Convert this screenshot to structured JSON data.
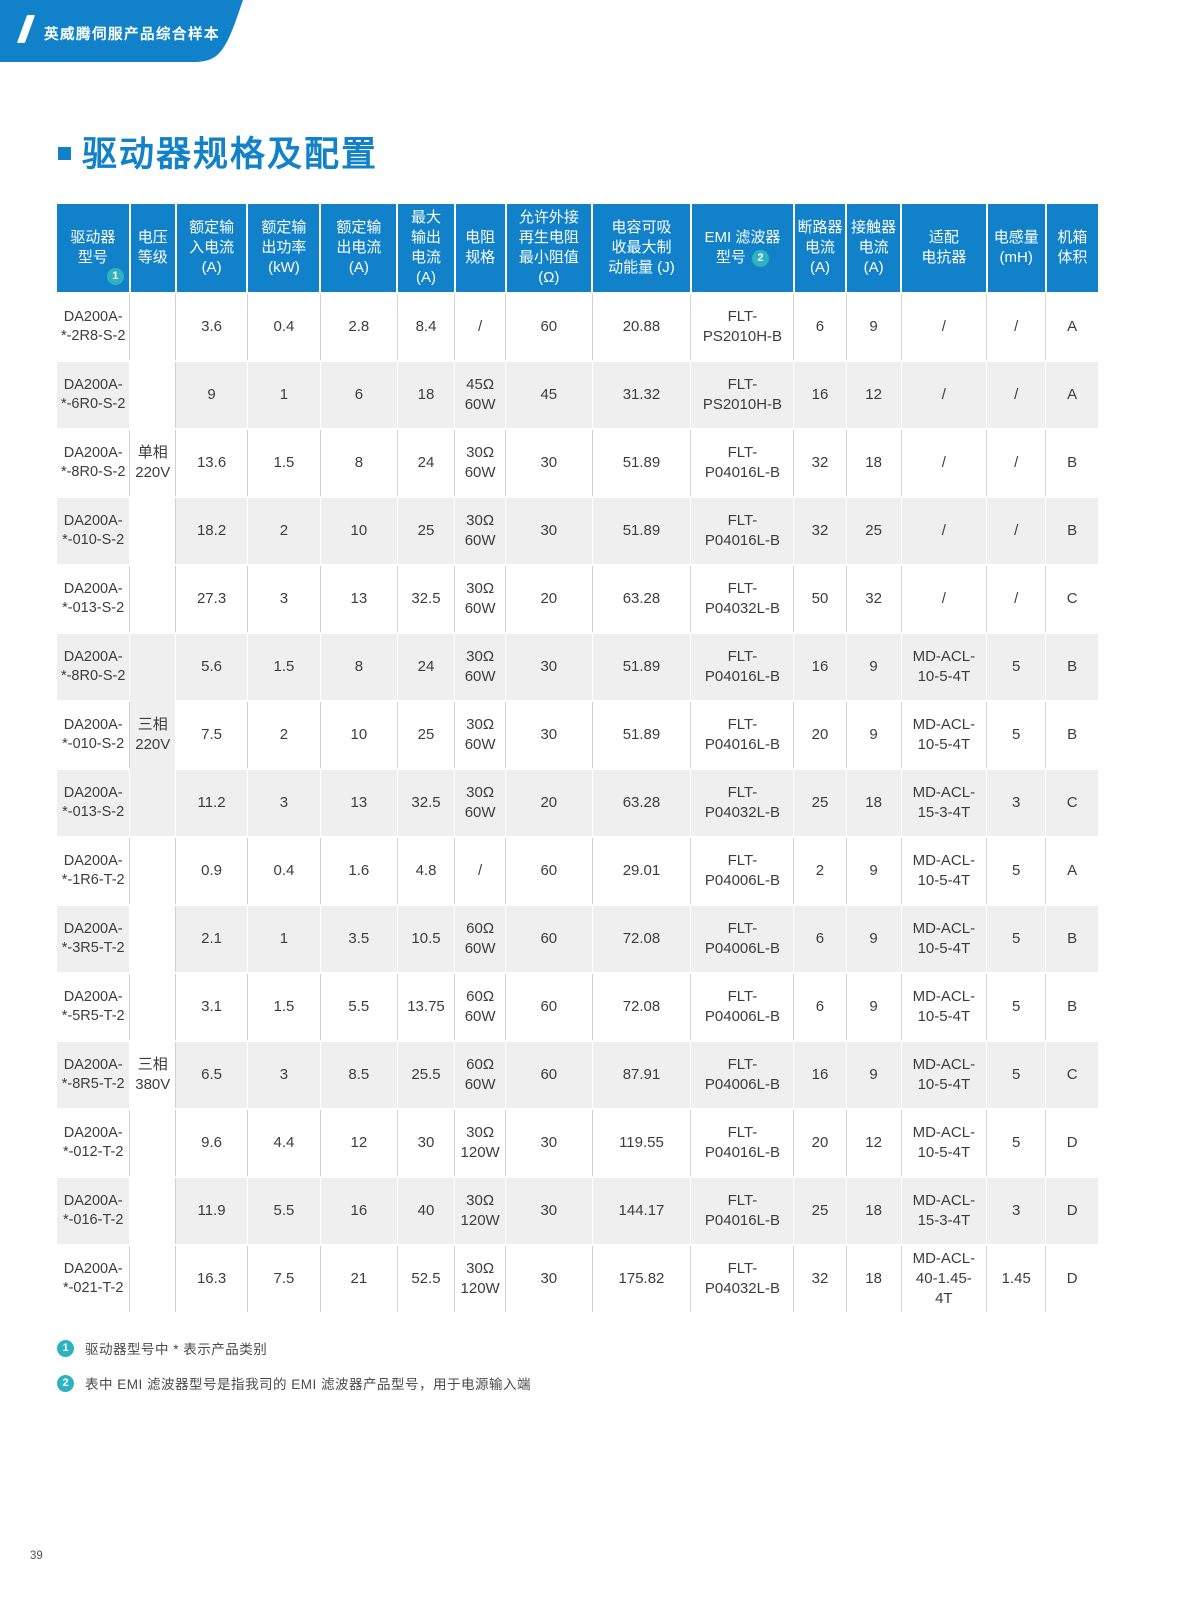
{
  "page": {
    "banner_title": "英威腾伺服产品综合样本",
    "section_title": "驱动器规格及配置",
    "page_number": "39"
  },
  "colors": {
    "primary_blue": "#1182c9",
    "badge_teal": "#2fb2c0",
    "row_alt_gray": "#efefef"
  },
  "table": {
    "col_widths": [
      "7%",
      "4.4%",
      "6.9%",
      "7%",
      "7.4%",
      "5.5%",
      "4.9%",
      "8.3%",
      "9.5%",
      "9.9%",
      "5%",
      "5.3%",
      "8.2%",
      "5.7%",
      "5%"
    ],
    "headers": [
      {
        "text": "驱动器\n型号",
        "badge": "1",
        "badge_pos": "corner"
      },
      {
        "text": "电压\n等级"
      },
      {
        "text": "额定输\n入电流\n(A)"
      },
      {
        "text": "额定输\n出功率\n(kW)"
      },
      {
        "text": "额定输\n出电流\n(A)"
      },
      {
        "text": "最大\n输出\n电流\n(A)"
      },
      {
        "text": "电阻\n规格"
      },
      {
        "text": "允许外接\n再生电阻\n最小阻值\n(Ω)"
      },
      {
        "text": "电容可吸\n收最大制\n动能量 (J)"
      },
      {
        "text": "EMI 滤波器\n型号",
        "badge": "2",
        "badge_pos": "inline"
      },
      {
        "text": "断路器\n电流\n(A)"
      },
      {
        "text": "接触器\n电流\n(A)"
      },
      {
        "text": "适配\n电抗器"
      },
      {
        "text": "电感量\n(mH)"
      },
      {
        "text": "机箱\n体积"
      }
    ],
    "rows": [
      [
        {
          "t": "DA200A-\n*-2R8-S-2"
        },
        {
          "t": "单相\n220V",
          "rs": 5
        },
        {
          "t": "3.6"
        },
        {
          "t": "0.4"
        },
        {
          "t": "2.8"
        },
        {
          "t": "8.4"
        },
        {
          "t": "/"
        },
        {
          "t": "60"
        },
        {
          "t": "20.88"
        },
        {
          "t": "FLT-\nPS2010H-B"
        },
        {
          "t": "6"
        },
        {
          "t": "9"
        },
        {
          "t": "/"
        },
        {
          "t": "/"
        },
        {
          "t": "A"
        }
      ],
      [
        {
          "t": "DA200A-\n*-6R0-S-2"
        },
        {
          "t": "9"
        },
        {
          "t": "1"
        },
        {
          "t": "6"
        },
        {
          "t": "18"
        },
        {
          "t": "45Ω\n60W"
        },
        {
          "t": "45"
        },
        {
          "t": "31.32"
        },
        {
          "t": "FLT-\nPS2010H-B"
        },
        {
          "t": "16"
        },
        {
          "t": "12"
        },
        {
          "t": "/"
        },
        {
          "t": "/"
        },
        {
          "t": "A"
        }
      ],
      [
        {
          "t": "DA200A-\n*-8R0-S-2"
        },
        {
          "t": "13.6"
        },
        {
          "t": "1.5"
        },
        {
          "t": "8"
        },
        {
          "t": "24"
        },
        {
          "t": "30Ω\n60W"
        },
        {
          "t": "30"
        },
        {
          "t": "51.89"
        },
        {
          "t": "FLT-\nP04016L-B"
        },
        {
          "t": "32"
        },
        {
          "t": "18"
        },
        {
          "t": "/"
        },
        {
          "t": "/"
        },
        {
          "t": "B"
        }
      ],
      [
        {
          "t": "DA200A-\n*-010-S-2"
        },
        {
          "t": "18.2"
        },
        {
          "t": "2"
        },
        {
          "t": "10"
        },
        {
          "t": "25"
        },
        {
          "t": "30Ω\n60W"
        },
        {
          "t": "30"
        },
        {
          "t": "51.89"
        },
        {
          "t": "FLT-\nP04016L-B"
        },
        {
          "t": "32"
        },
        {
          "t": "25"
        },
        {
          "t": "/"
        },
        {
          "t": "/"
        },
        {
          "t": "B"
        }
      ],
      [
        {
          "t": "DA200A-\n*-013-S-2"
        },
        {
          "t": "27.3"
        },
        {
          "t": "3"
        },
        {
          "t": "13"
        },
        {
          "t": "32.5"
        },
        {
          "t": "30Ω\n60W"
        },
        {
          "t": "20"
        },
        {
          "t": "63.28"
        },
        {
          "t": "FLT-\nP04032L-B"
        },
        {
          "t": "50"
        },
        {
          "t": "32"
        },
        {
          "t": "/"
        },
        {
          "t": "/"
        },
        {
          "t": "C"
        }
      ],
      [
        {
          "t": "DA200A-\n*-8R0-S-2"
        },
        {
          "t": "三相\n220V",
          "rs": 3
        },
        {
          "t": "5.6"
        },
        {
          "t": "1.5"
        },
        {
          "t": "8"
        },
        {
          "t": "24"
        },
        {
          "t": "30Ω\n60W"
        },
        {
          "t": "30"
        },
        {
          "t": "51.89"
        },
        {
          "t": "FLT-\nP04016L-B"
        },
        {
          "t": "16"
        },
        {
          "t": "9"
        },
        {
          "t": "MD-ACL-\n10-5-4T"
        },
        {
          "t": "5"
        },
        {
          "t": "B"
        }
      ],
      [
        {
          "t": "DA200A-\n*-010-S-2"
        },
        {
          "t": "7.5"
        },
        {
          "t": "2"
        },
        {
          "t": "10"
        },
        {
          "t": "25"
        },
        {
          "t": "30Ω\n60W"
        },
        {
          "t": "30"
        },
        {
          "t": "51.89"
        },
        {
          "t": "FLT-\nP04016L-B"
        },
        {
          "t": "20"
        },
        {
          "t": "9"
        },
        {
          "t": "MD-ACL-\n10-5-4T"
        },
        {
          "t": "5"
        },
        {
          "t": "B"
        }
      ],
      [
        {
          "t": "DA200A-\n*-013-S-2"
        },
        {
          "t": "11.2"
        },
        {
          "t": "3"
        },
        {
          "t": "13"
        },
        {
          "t": "32.5"
        },
        {
          "t": "30Ω\n60W"
        },
        {
          "t": "20"
        },
        {
          "t": "63.28"
        },
        {
          "t": "FLT-\nP04032L-B"
        },
        {
          "t": "25"
        },
        {
          "t": "18"
        },
        {
          "t": "MD-ACL-\n15-3-4T"
        },
        {
          "t": "3"
        },
        {
          "t": "C"
        }
      ],
      [
        {
          "t": "DA200A-\n*-1R6-T-2"
        },
        {
          "t": "三相\n380V",
          "rs": 7
        },
        {
          "t": "0.9"
        },
        {
          "t": "0.4"
        },
        {
          "t": "1.6"
        },
        {
          "t": "4.8"
        },
        {
          "t": "/"
        },
        {
          "t": "60"
        },
        {
          "t": "29.01"
        },
        {
          "t": "FLT-\nP04006L-B"
        },
        {
          "t": "2"
        },
        {
          "t": "9"
        },
        {
          "t": "MD-ACL-\n10-5-4T"
        },
        {
          "t": "5"
        },
        {
          "t": "A"
        }
      ],
      [
        {
          "t": "DA200A-\n*-3R5-T-2"
        },
        {
          "t": "2.1"
        },
        {
          "t": "1"
        },
        {
          "t": "3.5"
        },
        {
          "t": "10.5"
        },
        {
          "t": "60Ω\n60W"
        },
        {
          "t": "60"
        },
        {
          "t": "72.08"
        },
        {
          "t": "FLT-\nP04006L-B"
        },
        {
          "t": "6"
        },
        {
          "t": "9"
        },
        {
          "t": "MD-ACL-\n10-5-4T"
        },
        {
          "t": "5"
        },
        {
          "t": "B"
        }
      ],
      [
        {
          "t": "DA200A-\n*-5R5-T-2"
        },
        {
          "t": "3.1"
        },
        {
          "t": "1.5"
        },
        {
          "t": "5.5"
        },
        {
          "t": "13.75"
        },
        {
          "t": "60Ω\n60W"
        },
        {
          "t": "60"
        },
        {
          "t": "72.08"
        },
        {
          "t": "FLT-\nP04006L-B"
        },
        {
          "t": "6"
        },
        {
          "t": "9"
        },
        {
          "t": "MD-ACL-\n10-5-4T"
        },
        {
          "t": "5"
        },
        {
          "t": "B"
        }
      ],
      [
        {
          "t": "DA200A-\n*-8R5-T-2"
        },
        {
          "t": "6.5"
        },
        {
          "t": "3"
        },
        {
          "t": "8.5"
        },
        {
          "t": "25.5"
        },
        {
          "t": "60Ω\n60W"
        },
        {
          "t": "60"
        },
        {
          "t": "87.91"
        },
        {
          "t": "FLT-\nP04006L-B"
        },
        {
          "t": "16"
        },
        {
          "t": "9"
        },
        {
          "t": "MD-ACL-\n10-5-4T"
        },
        {
          "t": "5"
        },
        {
          "t": "C"
        }
      ],
      [
        {
          "t": "DA200A-\n*-012-T-2"
        },
        {
          "t": "9.6"
        },
        {
          "t": "4.4"
        },
        {
          "t": "12"
        },
        {
          "t": "30"
        },
        {
          "t": "30Ω\n120W"
        },
        {
          "t": "30"
        },
        {
          "t": "119.55"
        },
        {
          "t": "FLT-\nP04016L-B"
        },
        {
          "t": "20"
        },
        {
          "t": "12"
        },
        {
          "t": "MD-ACL-\n10-5-4T"
        },
        {
          "t": "5"
        },
        {
          "t": "D"
        }
      ],
      [
        {
          "t": "DA200A-\n*-016-T-2"
        },
        {
          "t": "11.9"
        },
        {
          "t": "5.5"
        },
        {
          "t": "16"
        },
        {
          "t": "40"
        },
        {
          "t": "30Ω\n120W"
        },
        {
          "t": "30"
        },
        {
          "t": "144.17"
        },
        {
          "t": "FLT-\nP04016L-B"
        },
        {
          "t": "25"
        },
        {
          "t": "18"
        },
        {
          "t": "MD-ACL-\n15-3-4T"
        },
        {
          "t": "3"
        },
        {
          "t": "D"
        }
      ],
      [
        {
          "t": "DA200A-\n*-021-T-2"
        },
        {
          "t": "16.3"
        },
        {
          "t": "7.5"
        },
        {
          "t": "21"
        },
        {
          "t": "52.5"
        },
        {
          "t": "30Ω\n120W"
        },
        {
          "t": "30"
        },
        {
          "t": "175.82"
        },
        {
          "t": "FLT-\nP04032L-B"
        },
        {
          "t": "32"
        },
        {
          "t": "18"
        },
        {
          "t": "MD-ACL-\n40-1.45-\n4T"
        },
        {
          "t": "1.45"
        },
        {
          "t": "D"
        }
      ]
    ]
  },
  "footnotes": [
    {
      "num": "1",
      "text": "驱动器型号中 * 表示产品类别"
    },
    {
      "num": "2",
      "text": "表中 EMI 滤波器型号是指我司的 EMI 滤波器产品型号，用于电源输入端"
    }
  ]
}
